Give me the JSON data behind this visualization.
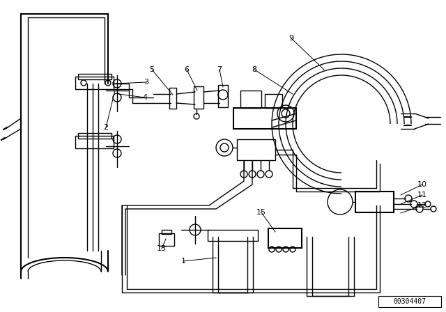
{
  "bg_color": "#ffffff",
  "line_color": "#000000",
  "part_number": "00304407",
  "fig_w": 6.4,
  "fig_h": 4.48,
  "dpi": 100
}
